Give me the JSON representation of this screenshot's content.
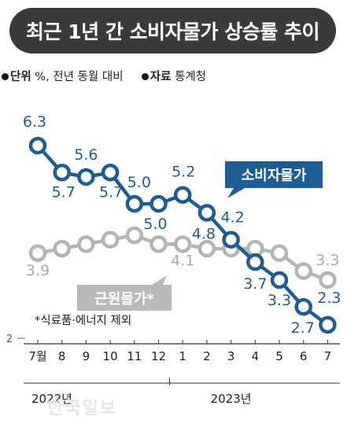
{
  "title": "최근 1년 간 소비자물가 상승률 추이",
  "unit_label": "단위",
  "unit_value": "%, 전년 동월 대비",
  "source_label": "자료",
  "source_value": "통계청",
  "note": "*식료품·에너지 제외",
  "watermark": "한국일보",
  "colors": {
    "title_bg": "#3a3a3a",
    "cpi": "#1d5d94",
    "core": "#b4b4b4",
    "core_label_bg": "#b9b9b9"
  },
  "chart_data": {
    "type": "line",
    "categories": [
      "7월",
      "8",
      "9",
      "10",
      "11",
      "12",
      "1",
      "2",
      "3",
      "4",
      "5",
      "6",
      "7"
    ],
    "year_labels": [
      "2022년",
      "2023년"
    ],
    "ylim": [
      2,
      6.6
    ],
    "y_ticks": [
      2
    ],
    "series": [
      {
        "name": "소비자물가",
        "color": "#1d5d94",
        "values": [
          6.3,
          5.7,
          5.6,
          5.7,
          5.0,
          5.0,
          5.2,
          4.8,
          4.2,
          3.7,
          3.3,
          2.7,
          2.3
        ],
        "labels": [
          "6.3",
          "5.7",
          "5.6",
          "5.7",
          "5.0",
          "5.0",
          "5.2",
          "4.8",
          "4.2",
          "3.7",
          "3.3",
          "2.7",
          "2.3"
        ]
      },
      {
        "name": "근원물가*",
        "color": "#b4b4b4",
        "values": [
          3.9,
          4.0,
          4.1,
          4.2,
          4.3,
          4.1,
          4.1,
          4.0,
          4.0,
          4.0,
          3.9,
          3.5,
          3.3
        ],
        "labels": [
          "3.9",
          "",
          "",
          "",
          "",
          "",
          "4.1",
          "",
          "",
          "",
          "",
          "",
          "3.3"
        ]
      }
    ]
  }
}
